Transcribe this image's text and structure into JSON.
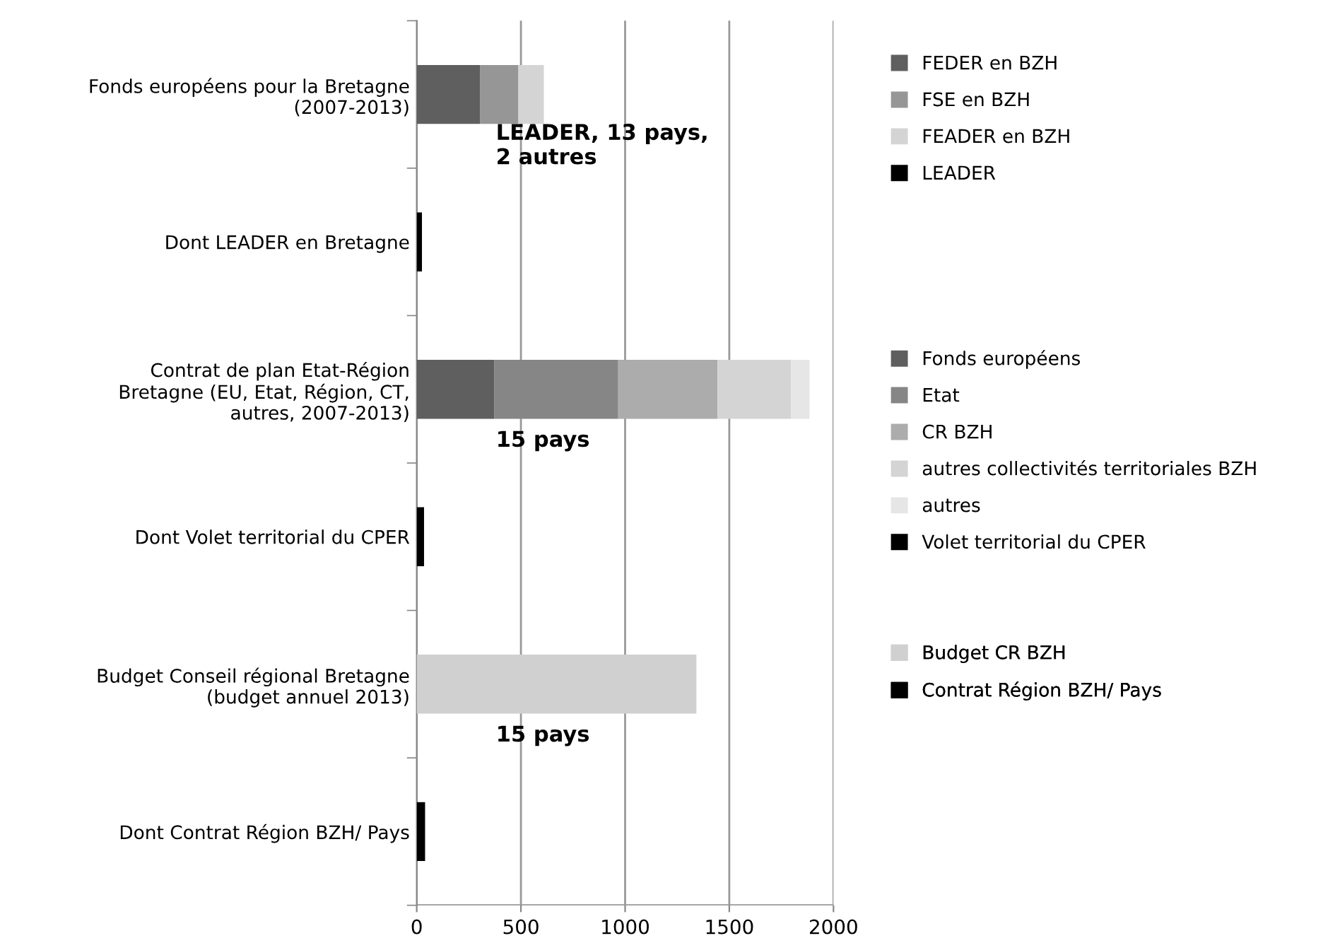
{
  "chart_data": {
    "type": "bar",
    "orientation": "horizontal",
    "stacked": true,
    "categories": [
      "Fonds européens pour la Bretagne\n(2007-2013)",
      "Dont LEADER en Bretagne",
      "Contrat de plan Etat-Région\nBretagne (EU, Etat, Région, CT,\nautres, 2007-2013)",
      "Dont Volet territorial du CPER",
      "Budget Conseil régional Bretagne\n(budget annuel 2013)",
      "Dont Contrat Région BZH/ Pays"
    ],
    "series": [
      {
        "name": "FEDER en BZH",
        "color": "#5f5f5f",
        "values": [
          305,
          null,
          null,
          null,
          null,
          null
        ]
      },
      {
        "name": "FSE en BZH",
        "color": "#969696",
        "values": [
          183,
          null,
          null,
          null,
          null,
          null
        ]
      },
      {
        "name": "FEADER en BZH",
        "color": "#d4d4d4",
        "values": [
          122,
          null,
          null,
          null,
          null,
          null
        ]
      },
      {
        "name": "LEADER",
        "color": "#000000",
        "values": [
          null,
          25,
          null,
          null,
          null,
          null
        ]
      },
      {
        "name": "Fonds européens",
        "color": "#5f5f5f",
        "values": [
          null,
          null,
          373,
          null,
          null,
          null
        ]
      },
      {
        "name": "Etat",
        "color": "#868686",
        "values": [
          null,
          null,
          594,
          null,
          null,
          null
        ]
      },
      {
        "name": "CR BZH",
        "color": "#acacac",
        "values": [
          null,
          null,
          477,
          null,
          null,
          null
        ]
      },
      {
        "name": "autres collectivités territoriales BZH",
        "color": "#d4d4d4",
        "values": [
          null,
          null,
          353,
          null,
          null,
          null
        ]
      },
      {
        "name": "autres",
        "color": "#e6e6e6",
        "values": [
          null,
          null,
          88,
          null,
          null,
          null
        ]
      },
      {
        "name": "Volet territorial du CPER",
        "color": "#000000",
        "values": [
          null,
          null,
          null,
          35,
          null,
          null
        ]
      },
      {
        "name": "Budget CR BZH",
        "color": "#d0d0d0",
        "values": [
          null,
          null,
          null,
          null,
          1342,
          null
        ]
      },
      {
        "name": "Contrat Région BZH/ Pays",
        "color": "#000000",
        "values": [
          null,
          null,
          null,
          null,
          null,
          40
        ]
      }
    ],
    "xlim": [
      0,
      2000
    ],
    "xticks": [
      0,
      500,
      1000,
      1500,
      2000
    ],
    "grid": "x",
    "legend": "right",
    "annotations": [
      "LEADER, 13 pays,\n2 autres",
      "15 pays",
      "15 pays"
    ]
  }
}
